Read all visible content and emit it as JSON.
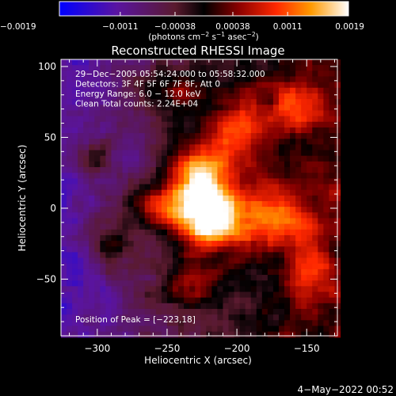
{
  "chart_data": {
    "type": "heatmap",
    "title": "Reconstructed RHESSI Image",
    "xlabel": "Heliocentric X (arcsec)",
    "ylabel": "Heliocentric Y (arcsec)",
    "xlim": [
      -326,
      -128
    ],
    "ylim": [
      -90,
      105
    ],
    "x_ticks": [
      -300,
      -250,
      -200,
      -150
    ],
    "y_ticks": [
      -50,
      0,
      50,
      100
    ],
    "x_tick_labels": [
      "−300",
      "−250",
      "−200",
      "−150"
    ],
    "y_tick_labels": [
      "−50",
      "0",
      "50",
      "100"
    ],
    "colorbar": {
      "min": -0.0019,
      "max": 0.0019,
      "tick_values": [
        -0.0019,
        -0.0011,
        -0.00038,
        0.00038,
        0.0011,
        0.0019
      ],
      "tick_labels": [
        "−0.0019",
        "−0.0011",
        "−0.00038",
        "0.00038",
        "0.0011",
        "0.0019"
      ],
      "units_prefix": "(photons cm",
      "units_exp1": "−2",
      "units_mid": " s",
      "units_exp2": "−1",
      "units_mid2": " asec",
      "units_exp3": "−2",
      "units_suffix": ")"
    },
    "annotations": [
      "29−Dec−2005 05:54:24.000 to 05:58:32.000",
      "Detectors: 3F 4F 5F 6F 7F 8F, Att 0",
      "Energy Range: 6.0 − 12.0 keV",
      "Clean     Total counts: 2.24E+04"
    ],
    "peak": {
      "label": "Position of Peak = [−223,18]",
      "x": -223,
      "y": 18,
      "value": 0.0019
    },
    "sources": [
      {
        "x": -228,
        "y": 15,
        "amplitude": 0.0018,
        "sigma_x": 16,
        "sigma_y": 22
      },
      {
        "x": -216,
        "y": -12,
        "amplitude": 0.0012,
        "sigma_x": 20,
        "sigma_y": 14
      },
      {
        "x": -262,
        "y": 2,
        "amplitude": 0.0009,
        "sigma_x": 15,
        "sigma_y": 10
      },
      {
        "x": -198,
        "y": 55,
        "amplitude": 0.001,
        "sigma_x": 14,
        "sigma_y": 18
      },
      {
        "x": -172,
        "y": -5,
        "amplitude": 0.0008,
        "sigma_x": 18,
        "sigma_y": 16
      },
      {
        "x": -290,
        "y": -25,
        "amplitude": 0.0007,
        "sigma_x": 12,
        "sigma_y": 12
      },
      {
        "x": -248,
        "y": 82,
        "amplitude": 0.0007,
        "sigma_x": 20,
        "sigma_y": 12
      },
      {
        "x": -160,
        "y": 72,
        "amplitude": 0.0007,
        "sigma_x": 14,
        "sigma_y": 14
      },
      {
        "x": -235,
        "y": -55,
        "amplitude": 0.0007,
        "sigma_x": 18,
        "sigma_y": 12
      },
      {
        "x": -300,
        "y": 35,
        "amplitude": 0.0006,
        "sigma_x": 10,
        "sigma_y": 10
      },
      {
        "x": -150,
        "y": -45,
        "amplitude": 0.0006,
        "sigma_x": 12,
        "sigma_y": 20
      }
    ],
    "background": {
      "level": -0.0012,
      "gradient_x": 2.5e-06,
      "noise": 0.00055
    }
  },
  "timestamp": "4−May−2022 00:52"
}
